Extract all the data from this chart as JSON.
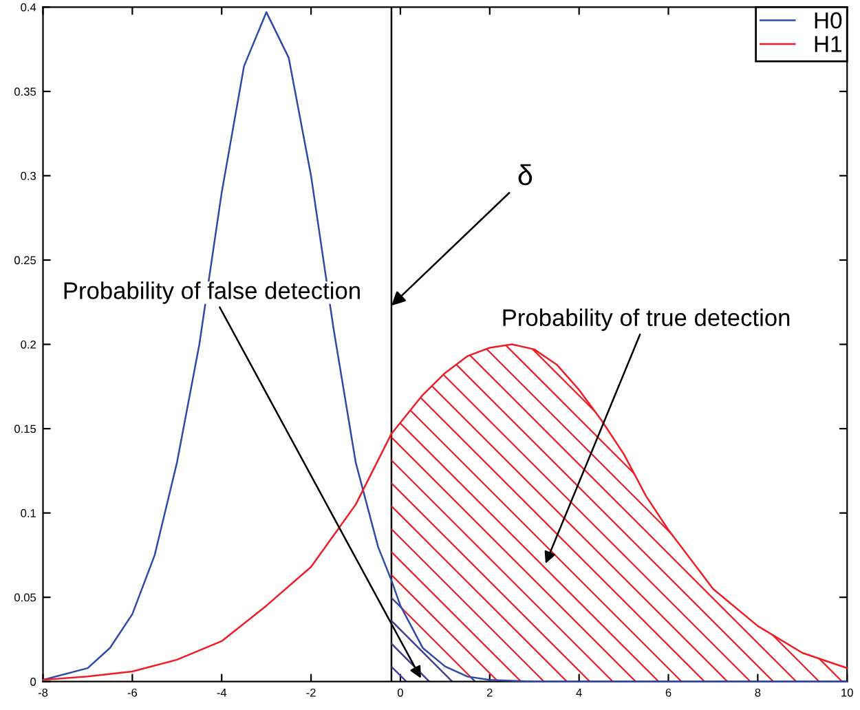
{
  "chart_data": {
    "type": "line",
    "series": [
      {
        "name": "H0",
        "color": "#3048a8",
        "x": [
          -8,
          -7,
          -6.5,
          -6,
          -5.5,
          -5,
          -4.5,
          -4,
          -3.5,
          -3,
          -2.5,
          -2,
          -1.5,
          -1,
          -0.5,
          -0.2,
          0,
          0.5,
          1,
          1.5,
          2,
          3,
          4,
          6,
          8,
          10
        ],
        "values": [
          0.001,
          0.008,
          0.02,
          0.04,
          0.075,
          0.13,
          0.2,
          0.29,
          0.365,
          0.397,
          0.37,
          0.3,
          0.21,
          0.13,
          0.08,
          0.06,
          0.045,
          0.02,
          0.009,
          0.003,
          0.001,
          0,
          0,
          0,
          0,
          0
        ]
      },
      {
        "name": "H1",
        "color": "#ee1c25",
        "x": [
          -8,
          -7,
          -6,
          -5,
          -4,
          -3,
          -2,
          -1,
          -0.2,
          0.5,
          1,
          1.5,
          2,
          2.5,
          3,
          3.5,
          4,
          4.5,
          5,
          5.5,
          6,
          7,
          8,
          9,
          10
        ],
        "values": [
          0.001,
          0.003,
          0.006,
          0.013,
          0.024,
          0.045,
          0.068,
          0.105,
          0.147,
          0.17,
          0.183,
          0.193,
          0.198,
          0.2,
          0.197,
          0.188,
          0.173,
          0.155,
          0.135,
          0.11,
          0.09,
          0.055,
          0.033,
          0.017,
          0.008
        ]
      },
      {
        "type": "area",
        "color": "#ee1c25",
        "x": [
          -0.2,
          0.5,
          1,
          1.5,
          2,
          2.5,
          3,
          3.5,
          4,
          4.5,
          5,
          5.5,
          6,
          7,
          8,
          9,
          10
        ],
        "values": [
          0.147,
          0.17,
          0.183,
          0.193,
          0.198,
          0.2,
          0.197,
          0.188,
          0.173,
          0.155,
          0.135,
          0.11,
          0.09,
          0.055,
          0.033,
          0.017,
          0.008
        ]
      },
      {
        "type": "area",
        "color": "#3048a8",
        "x": [
          -0.2,
          0,
          0.5,
          1,
          1.5,
          2,
          3
        ],
        "values": [
          0.06,
          0.045,
          0.02,
          0.009,
          0.003,
          0.001,
          0
        ]
      }
    ],
    "xlim": [
      -8,
      10
    ],
    "xticks": [
      -8,
      -6,
      -4,
      -2,
      0,
      2,
      4,
      6,
      8,
      10
    ],
    "ylim": [
      0,
      0.4
    ],
    "yticks": [
      0,
      0.05,
      0.1,
      0.15,
      0.2,
      0.25,
      0.3,
      0.35,
      0.4
    ],
    "ref_lines": [
      {
        "axis": "x",
        "value": -0.2,
        "label": "δ",
        "color": "#000000"
      }
    ],
    "annotations": [
      "Probability of false detection",
      "Probability of true detection"
    ],
    "grid": false,
    "legend": "top right",
    "marker": "none",
    "line_style": "solid"
  }
}
